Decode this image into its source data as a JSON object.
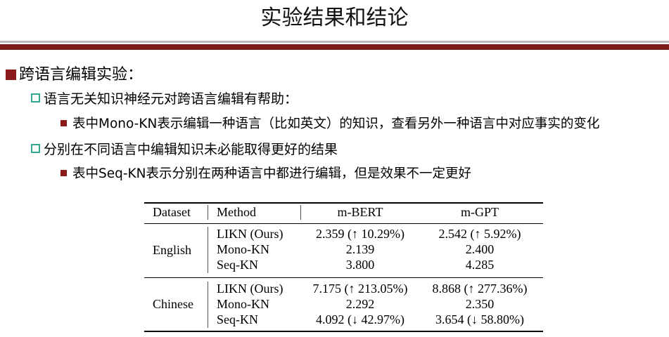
{
  "title": "实验结果和结论",
  "bullets": {
    "l1": "跨语言编辑实验：",
    "l2": "语言无关知识神经元对跨语言编辑有帮助：",
    "l3": "表中Mono-KN表示编辑一种语言（比如英文）的知识，查看另外一种语言中对应事实的变化",
    "l4": "分别在不同语言中编辑知识未必能取得更好的结果",
    "l5": "表中Seq-KN表示分别在两种语言中都进行编辑，但是效果不一定更好"
  },
  "table": {
    "headers": [
      "Dataset",
      "Method",
      "m-BERT",
      "m-GPT"
    ],
    "groups": [
      {
        "dataset": "English",
        "rows": [
          [
            "LIKN (Ours)",
            "2.359 (↑ 10.29%)",
            "2.542 (↑ 5.92%)"
          ],
          [
            "Mono-KN",
            "2.139",
            "2.400"
          ],
          [
            "Seq-KN",
            "3.800",
            "4.285"
          ]
        ]
      },
      {
        "dataset": "Chinese",
        "rows": [
          [
            "LIKN (Ours)",
            "7.175 (↑ 213.05%)",
            "8.868 (↑ 277.36%)"
          ],
          [
            "Mono-KN",
            "2.292",
            "2.350"
          ],
          [
            "Seq-KN",
            "4.092 (↓ 42.97%)",
            "3.654 (↓ 58.80%)"
          ]
        ]
      }
    ]
  }
}
